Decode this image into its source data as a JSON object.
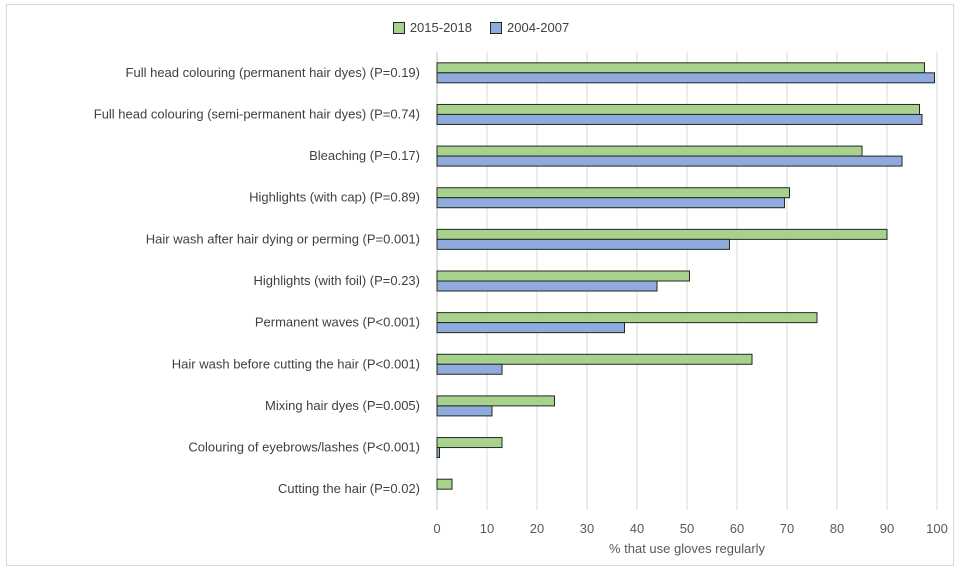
{
  "chart_data": {
    "type": "bar",
    "orientation": "horizontal",
    "categories": [
      "Full head colouring (permanent hair dyes) (P=0.19)",
      "Full head colouring (semi-permanent hair dyes) (P=0.74)",
      "Bleaching (P=0.17)",
      "Highlights (with cap) (P=0.89)",
      "Hair wash after hair dying or perming (P=0.001)",
      "Highlights (with foil) (P=0.23)",
      "Permanent waves (P<0.001)",
      "Hair wash before cutting the hair (P<0.001)",
      "Mixing hair dyes (P=0.005)",
      "Colouring of eyebrows/lashes (P<0.001)",
      "Cutting the hair (P=0.02)"
    ],
    "series": [
      {
        "name": "2015-2018",
        "color": "#a9d18e",
        "values": [
          97.5,
          96.5,
          85,
          70.5,
          90,
          50.5,
          76,
          63,
          23.5,
          13,
          3
        ]
      },
      {
        "name": "2004-2007",
        "color": "#8faadc",
        "values": [
          99.5,
          97,
          93,
          69.5,
          58.5,
          44,
          37.5,
          13,
          11,
          0.5,
          0
        ]
      }
    ],
    "xlabel": "% that use gloves regularly",
    "ylabel": "",
    "xlim": [
      0,
      100
    ],
    "xticks": [
      0,
      10,
      20,
      30,
      40,
      50,
      60,
      70,
      80,
      90,
      100
    ],
    "grid": true,
    "legend_position": "top"
  }
}
